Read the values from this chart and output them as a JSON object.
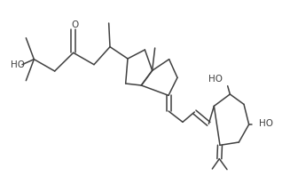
{
  "background": "#ffffff",
  "line_color": "#404040",
  "line_width": 1.1,
  "figsize": [
    3.27,
    1.98
  ],
  "dpi": 100,
  "xlim": [
    0,
    327
  ],
  "ylim": [
    0,
    198
  ]
}
